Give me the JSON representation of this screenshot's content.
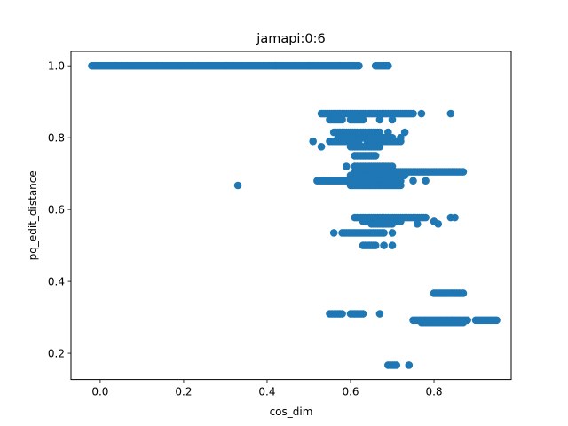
{
  "chart_data": {
    "type": "scatter",
    "title": "jamapi:0:6",
    "xlabel": "cos_dim",
    "ylabel": "pq_edit_distance",
    "xlim": [
      -0.07,
      0.985
    ],
    "ylim": [
      0.127,
      1.04
    ],
    "xticks": [
      0.0,
      0.2,
      0.4,
      0.6,
      0.8
    ],
    "yticks": [
      0.2,
      0.4,
      0.6,
      0.8,
      1.0
    ],
    "xtick_labels": [
      "0.0",
      "0.2",
      "0.4",
      "0.6",
      "0.8"
    ],
    "ytick_labels": [
      "0.2",
      "0.4",
      "0.6",
      "0.8",
      "1.0"
    ],
    "grid": false,
    "marker_color": "#1f77b4",
    "clusters": [
      {
        "y": 1.0,
        "x_ranges": [
          [
            -0.02,
            0.42
          ],
          [
            0.42,
            0.62
          ],
          [
            0.66,
            0.69
          ]
        ],
        "x_points": [
          0.3,
          0.5,
          0.6
        ]
      },
      {
        "y": 0.867,
        "x_ranges": [
          [
            0.53,
            0.75
          ]
        ],
        "x_points": [
          0.77,
          0.84
        ]
      },
      {
        "y": 0.85,
        "x_ranges": [
          [
            0.55,
            0.58
          ],
          [
            0.6,
            0.63
          ]
        ],
        "x_points": [
          0.67,
          0.7
        ]
      },
      {
        "y": 0.815,
        "x_ranges": [
          [
            0.56,
            0.67
          ]
        ],
        "x_points": [
          0.69,
          0.73
        ]
      },
      {
        "y": 0.8,
        "x_ranges": [
          [
            0.57,
            0.7
          ]
        ],
        "x_points": [
          0.72
        ]
      },
      {
        "y": 0.79,
        "x_ranges": [
          [
            0.55,
            0.62
          ],
          [
            0.64,
            0.72
          ]
        ],
        "x_points": [
          0.51
        ]
      },
      {
        "y": 0.775,
        "x_ranges": [
          [
            0.6,
            0.67
          ]
        ],
        "x_points": [
          0.53
        ]
      },
      {
        "y": 0.75,
        "x_ranges": [
          [
            0.61,
            0.66
          ]
        ],
        "x_points": []
      },
      {
        "y": 0.72,
        "x_ranges": [
          [
            0.61,
            0.7
          ]
        ],
        "x_points": [
          0.59
        ]
      },
      {
        "y": 0.705,
        "x_ranges": [
          [
            0.61,
            0.87
          ]
        ],
        "x_points": []
      },
      {
        "y": 0.695,
        "x_ranges": [
          [
            0.6,
            0.73
          ]
        ],
        "x_points": []
      },
      {
        "y": 0.68,
        "x_ranges": [
          [
            0.52,
            0.72
          ]
        ],
        "x_points": [
          0.75,
          0.78
        ]
      },
      {
        "y": 0.667,
        "x_ranges": [
          [
            0.6,
            0.72
          ]
        ],
        "x_points": [
          0.33
        ]
      },
      {
        "y": 0.578,
        "x_ranges": [
          [
            0.61,
            0.78
          ]
        ],
        "x_points": [
          0.84,
          0.85
        ]
      },
      {
        "y": 0.567,
        "x_ranges": [
          [
            0.63,
            0.72
          ]
        ],
        "x_points": [
          0.8
        ]
      },
      {
        "y": 0.56,
        "x_ranges": [
          [
            0.65,
            0.7
          ]
        ],
        "x_points": [
          0.76,
          0.81
        ]
      },
      {
        "y": 0.535,
        "x_ranges": [
          [
            0.58,
            0.68
          ]
        ],
        "x_points": [
          0.56,
          0.7
        ]
      },
      {
        "y": 0.5,
        "x_ranges": [
          [
            0.63,
            0.66
          ]
        ],
        "x_points": [
          0.68,
          0.7
        ]
      },
      {
        "y": 0.367,
        "x_ranges": [
          [
            0.8,
            0.87
          ]
        ],
        "x_points": []
      },
      {
        "y": 0.31,
        "x_ranges": [
          [
            0.55,
            0.58
          ],
          [
            0.6,
            0.63
          ]
        ],
        "x_points": [
          0.67
        ]
      },
      {
        "y": 0.292,
        "x_ranges": [
          [
            0.75,
            0.88
          ],
          [
            0.9,
            0.95
          ]
        ],
        "x_points": []
      },
      {
        "y": 0.286,
        "x_ranges": [
          [
            0.77,
            0.87
          ]
        ],
        "x_points": []
      },
      {
        "y": 0.167,
        "x_ranges": [
          [
            0.69,
            0.71
          ]
        ],
        "x_points": [
          0.74
        ]
      }
    ]
  }
}
